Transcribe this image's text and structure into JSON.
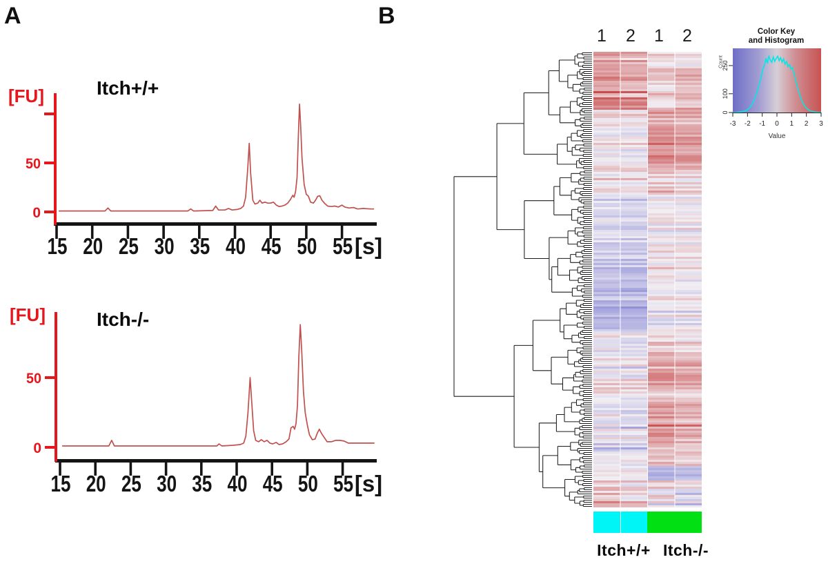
{
  "panels": {
    "a_label": "A",
    "b_label": "B"
  },
  "chart_data": [
    {
      "id": "trace_itch_wt",
      "type": "line",
      "title": "Itch+/+",
      "ylabel": "[FU]",
      "xlabel": "[s]",
      "x_ticks": [
        15,
        20,
        25,
        30,
        35,
        40,
        45,
        50,
        55
      ],
      "y_ticks": [
        {
          "v": 0,
          "label": "0"
        },
        {
          "v": 50,
          "label": "50"
        },
        {
          "v": 100,
          "label": null
        }
      ],
      "xlim": [
        15,
        60
      ],
      "ylim": [
        0,
        120
      ],
      "line_color": "#c0504d",
      "axis_color": "#e6161d",
      "series": [
        {
          "name": "fluorescence",
          "points": [
            [
              15.3,
              1
            ],
            [
              17,
              1
            ],
            [
              19,
              1
            ],
            [
              21,
              1
            ],
            [
              21.8,
              1
            ],
            [
              22.2,
              4
            ],
            [
              22.6,
              1
            ],
            [
              25,
              1
            ],
            [
              28,
              1
            ],
            [
              31,
              1
            ],
            [
              33.4,
              1
            ],
            [
              33.8,
              3
            ],
            [
              34.2,
              1
            ],
            [
              36.9,
              1.5
            ],
            [
              37.3,
              6
            ],
            [
              37.7,
              2
            ],
            [
              38.6,
              2
            ],
            [
              39.1,
              3.5
            ],
            [
              39.6,
              2
            ],
            [
              40.3,
              2.5
            ],
            [
              40.8,
              3.5
            ],
            [
              41.2,
              6
            ],
            [
              41.5,
              15
            ],
            [
              41.8,
              45
            ],
            [
              42,
              70
            ],
            [
              42.2,
              40
            ],
            [
              42.5,
              12
            ],
            [
              42.8,
              8
            ],
            [
              43.2,
              9
            ],
            [
              43.5,
              12
            ],
            [
              43.8,
              9
            ],
            [
              44.2,
              10
            ],
            [
              44.6,
              9
            ],
            [
              45,
              9
            ],
            [
              45.4,
              10
            ],
            [
              45.8,
              7
            ],
            [
              46.2,
              5.5
            ],
            [
              46.6,
              6
            ],
            [
              47,
              7
            ],
            [
              47.4,
              9
            ],
            [
              47.8,
              13
            ],
            [
              48.1,
              17
            ],
            [
              48.3,
              15
            ],
            [
              48.5,
              21
            ],
            [
              48.7,
              35
            ],
            [
              48.9,
              80
            ],
            [
              49.05,
              110
            ],
            [
              49.2,
              90
            ],
            [
              49.4,
              55
            ],
            [
              49.7,
              28
            ],
            [
              50,
              18
            ],
            [
              50.3,
              16
            ],
            [
              50.6,
              10
            ],
            [
              51,
              9
            ],
            [
              51.3,
              12
            ],
            [
              51.6,
              16
            ],
            [
              51.9,
              16.5
            ],
            [
              52.2,
              12
            ],
            [
              52.6,
              8.5
            ],
            [
              53,
              6
            ],
            [
              53.5,
              5.5
            ],
            [
              54,
              6
            ],
            [
              54.5,
              5
            ],
            [
              55,
              7
            ],
            [
              55.4,
              5
            ],
            [
              56,
              4
            ],
            [
              56.6,
              4.5
            ],
            [
              57.2,
              3
            ],
            [
              58,
              3.5
            ],
            [
              59,
              3
            ],
            [
              59.5,
              3
            ]
          ]
        }
      ]
    },
    {
      "id": "trace_itch_ko",
      "type": "line",
      "title": "Itch-/-",
      "ylabel": "[FU]",
      "xlabel": "[s]",
      "x_ticks": [
        15,
        20,
        25,
        30,
        35,
        40,
        45,
        50,
        55
      ],
      "y_ticks": [
        {
          "v": 0,
          "label": "0"
        },
        {
          "v": 50,
          "label": "50"
        }
      ],
      "xlim": [
        15,
        60
      ],
      "ylim": [
        0,
        100
      ],
      "line_color": "#c0504d",
      "axis_color": "#e6161d",
      "series": [
        {
          "name": "fluorescence",
          "points": [
            [
              15.3,
              1
            ],
            [
              17,
              1
            ],
            [
              19,
              1
            ],
            [
              21,
              1
            ],
            [
              21.9,
              1
            ],
            [
              22.3,
              5
            ],
            [
              22.7,
              1
            ],
            [
              25,
              1
            ],
            [
              28,
              1
            ],
            [
              31,
              1
            ],
            [
              34,
              1
            ],
            [
              37.2,
              1
            ],
            [
              37.5,
              2.5
            ],
            [
              37.9,
              1
            ],
            [
              39.5,
              1.5
            ],
            [
              40.5,
              2
            ],
            [
              41,
              3
            ],
            [
              41.3,
              8
            ],
            [
              41.6,
              25
            ],
            [
              41.9,
              50
            ],
            [
              42.1,
              35
            ],
            [
              42.4,
              12
            ],
            [
              42.7,
              5
            ],
            [
              43.1,
              4
            ],
            [
              43.5,
              5.5
            ],
            [
              43.9,
              4
            ],
            [
              44.3,
              5
            ],
            [
              44.7,
              3
            ],
            [
              45.1,
              2.5
            ],
            [
              45.6,
              3.5
            ],
            [
              46,
              2
            ],
            [
              46.5,
              2.5
            ],
            [
              47,
              4
            ],
            [
              47.4,
              6
            ],
            [
              47.7,
              14
            ],
            [
              48,
              15
            ],
            [
              48.2,
              13
            ],
            [
              48.4,
              17
            ],
            [
              48.6,
              30
            ],
            [
              48.8,
              65
            ],
            [
              49,
              88
            ],
            [
              49.2,
              70
            ],
            [
              49.45,
              40
            ],
            [
              49.7,
              25
            ],
            [
              50,
              16
            ],
            [
              50.3,
              9
            ],
            [
              50.7,
              5.5
            ],
            [
              51.1,
              6
            ],
            [
              51.4,
              10
            ],
            [
              51.7,
              13
            ],
            [
              52,
              10
            ],
            [
              52.4,
              7
            ],
            [
              52.8,
              4
            ],
            [
              53.4,
              4
            ],
            [
              54,
              5
            ],
            [
              54.6,
              5
            ],
            [
              55.2,
              4.5
            ],
            [
              55.8,
              3
            ],
            [
              56.6,
              3
            ],
            [
              57.5,
              3
            ],
            [
              58.5,
              3
            ],
            [
              59.5,
              3
            ]
          ]
        }
      ]
    },
    {
      "id": "expression_heatmap",
      "type": "heatmap",
      "columns": [
        "1",
        "2",
        "1",
        "2"
      ],
      "groups": [
        {
          "label": "Itch+/+",
          "color": "#00f6f6",
          "columns": [
            0,
            1
          ]
        },
        {
          "label": "Itch-/-",
          "color": "#00e013",
          "columns": [
            2,
            3
          ]
        }
      ],
      "value_range": [
        -3,
        3
      ],
      "rows_estimate": 220,
      "palette": {
        "low": "#7a7ad0",
        "mid": "#f1eef3",
        "high": "#c84b4b"
      },
      "dendrogram": {
        "side": "left",
        "color": "#1b1b1b",
        "seed": 42
      },
      "sections": [
        {
          "frac": 0.05,
          "means": [
            1.3,
            1.1,
            0.5,
            0.4
          ],
          "sd": 0.45
        },
        {
          "frac": 0.075,
          "means": [
            1.6,
            1.4,
            0.4,
            0.9
          ],
          "sd": 0.5
        },
        {
          "frac": 0.035,
          "means": [
            0.5,
            0.4,
            1.2,
            1.1
          ],
          "sd": 0.4
        },
        {
          "frac": 0.1,
          "means": [
            0.35,
            0.25,
            1.7,
            1.5
          ],
          "sd": 0.45
        },
        {
          "frac": 0.055,
          "means": [
            0.2,
            0.1,
            1.0,
            0.7
          ],
          "sd": 0.5
        },
        {
          "frac": 0.07,
          "means": [
            -0.7,
            -0.8,
            0.15,
            0.1
          ],
          "sd": 0.4
        },
        {
          "frac": 0.07,
          "means": [
            -0.9,
            -1.0,
            0.2,
            0.25
          ],
          "sd": 0.45
        },
        {
          "frac": 0.09,
          "means": [
            -1.3,
            -1.4,
            0.1,
            0.0
          ],
          "sd": 0.4
        },
        {
          "frac": 0.07,
          "means": [
            -1.5,
            -1.6,
            -0.1,
            0.05
          ],
          "sd": 0.4
        },
        {
          "frac": 0.065,
          "means": [
            -0.55,
            -0.65,
            0.7,
            0.45
          ],
          "sd": 0.5
        },
        {
          "frac": 0.08,
          "means": [
            -0.25,
            -0.35,
            1.25,
            0.95
          ],
          "sd": 0.5
        },
        {
          "frac": 0.1,
          "means": [
            -0.15,
            -0.25,
            1.5,
            1.15
          ],
          "sd": 0.55
        },
        {
          "frac": 0.05,
          "means": [
            -0.45,
            -0.3,
            0.9,
            0.6
          ],
          "sd": 0.55
        },
        {
          "frac": 0.03,
          "means": [
            0.1,
            0.0,
            -1.3,
            -1.1
          ],
          "sd": 0.4
        },
        {
          "frac": 0.06,
          "means": [
            0.6,
            0.3,
            0.5,
            -0.1
          ],
          "sd": 0.8
        }
      ]
    },
    {
      "id": "color_key",
      "type": "histogram",
      "title_line1": "Color Key",
      "title_line2": "and Histogram",
      "xlabel": "Value",
      "ylabel": "Count",
      "x_ticks": [
        -3,
        -2,
        -1,
        0,
        1,
        2,
        3
      ],
      "y_ticks": [
        0,
        100,
        250
      ],
      "curve_color": "#00e8e8",
      "gradient": [
        [
          "0%",
          "#6e6ec8"
        ],
        [
          "30%",
          "#a39fd2"
        ],
        [
          "50%",
          "#d7ced6"
        ],
        [
          "70%",
          "#cf9094"
        ],
        [
          "100%",
          "#c85252"
        ]
      ],
      "points": [
        [
          -3,
          0
        ],
        [
          -2.7,
          1
        ],
        [
          -2.5,
          3
        ],
        [
          -2.3,
          6
        ],
        [
          -2.1,
          10
        ],
        [
          -1.9,
          22
        ],
        [
          -1.7,
          42
        ],
        [
          -1.5,
          75
        ],
        [
          -1.35,
          110
        ],
        [
          -1.2,
          150
        ],
        [
          -1.05,
          195
        ],
        [
          -0.95,
          235
        ],
        [
          -0.85,
          250
        ],
        [
          -0.75,
          290
        ],
        [
          -0.65,
          262
        ],
        [
          -0.55,
          300
        ],
        [
          -0.45,
          278
        ],
        [
          -0.35,
          268
        ],
        [
          -0.25,
          296
        ],
        [
          -0.15,
          272
        ],
        [
          -0.05,
          288
        ],
        [
          0.05,
          300
        ],
        [
          0.15,
          276
        ],
        [
          0.25,
          292
        ],
        [
          0.35,
          268
        ],
        [
          0.45,
          286
        ],
        [
          0.55,
          258
        ],
        [
          0.65,
          272
        ],
        [
          0.75,
          244
        ],
        [
          0.85,
          256
        ],
        [
          0.95,
          232
        ],
        [
          1.05,
          240
        ],
        [
          1.15,
          210
        ],
        [
          1.25,
          178
        ],
        [
          1.4,
          132
        ],
        [
          1.55,
          92
        ],
        [
          1.7,
          60
        ],
        [
          1.85,
          38
        ],
        [
          2,
          24
        ],
        [
          2.15,
          14
        ],
        [
          2.3,
          8
        ],
        [
          2.5,
          4
        ],
        [
          2.7,
          2
        ],
        [
          3,
          0
        ]
      ]
    }
  ]
}
